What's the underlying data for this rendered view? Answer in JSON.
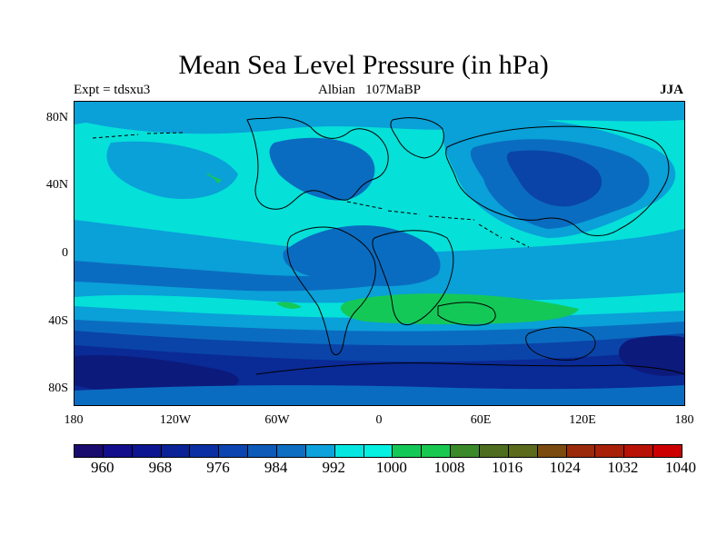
{
  "title": "Mean Sea Level Pressure (in hPa)",
  "left_label": "Expt = tdsxu3",
  "center_label": "Albian   107MaBP",
  "right_label": "JJA",
  "lat_ticks": [
    "80N",
    "40N",
    "0",
    "40S",
    "80S"
  ],
  "lon_ticks": [
    "180",
    "120W",
    "60W",
    "0",
    "60E",
    "120E",
    "180"
  ],
  "colorbar": {
    "colors": [
      "#1a0b6e",
      "#130e8b",
      "#0d1690",
      "#0a2296",
      "#0a2fa3",
      "#0c45b0",
      "#0d5ab8",
      "#0e6ec1",
      "#0ea2dc",
      "#06e6e0",
      "#05f0e0",
      "#14c858",
      "#1ac850",
      "#3a8a2a",
      "#4e6d1e",
      "#5c6a1c",
      "#7a4a0e",
      "#9a2a0a",
      "#a82008",
      "#b81206",
      "#cc0000"
    ],
    "labels": [
      "960",
      "968",
      "976",
      "984",
      "992",
      "1000",
      "1008",
      "1016",
      "1024",
      "1032",
      "1040"
    ]
  },
  "map_colors": {
    "c1000": "#05e0d8",
    "c992": "#0aa0d8",
    "c984": "#0a6cc0",
    "c976": "#0a44a8",
    "c968": "#0a2a96",
    "c960": "#0c1a7c",
    "c1008": "#14c858",
    "coast": "#000000"
  }
}
